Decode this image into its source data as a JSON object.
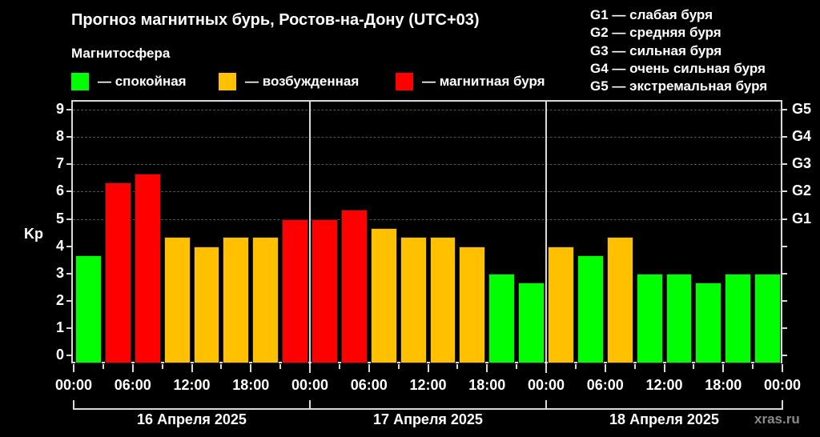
{
  "title": "Прогноз магнитных бурь, Ростов-на-Дону (UTC+03)",
  "legend": {
    "heading": "Магнитосфера",
    "items": [
      {
        "label": "— спокойная",
        "color": "#00ff00",
        "x": 89
      },
      {
        "label": "— возбужденная",
        "color": "#ffc000",
        "x": 273
      },
      {
        "label": "— магнитная буря",
        "color": "#ff0000",
        "x": 494
      }
    ]
  },
  "g_legend": [
    "G1 — слабая буря",
    "G2 — средняя буря",
    "G3 — сильная буря",
    "G4 — очень сильная буря",
    "G5 — экстремальная буря"
  ],
  "watermark": "xras.ru",
  "colors": {
    "quiet": "#00ff00",
    "active": "#ffc000",
    "storm": "#ff0000",
    "background": "#000000",
    "axis": "#d9d9d9",
    "grid": "#555555"
  },
  "chart_data": {
    "type": "bar",
    "title": "Прогноз магнитных бурь, Ростов-на-Дону (UTC+03)",
    "xlabel": "",
    "ylabel": "Kp",
    "ylim": [
      0,
      9
    ],
    "yticks": [
      0,
      1,
      2,
      3,
      4,
      5,
      6,
      7,
      8,
      9
    ],
    "right_axis_labels": [
      {
        "value": 5,
        "label": "G1"
      },
      {
        "value": 6,
        "label": "G2"
      },
      {
        "value": 7,
        "label": "G3"
      },
      {
        "value": 8,
        "label": "G4"
      },
      {
        "value": 9,
        "label": "G5"
      }
    ],
    "grid": "dashed horizontal at 5-9",
    "x_tick_labels": [
      "00:00",
      "06:00",
      "12:00",
      "18:00",
      "00:00",
      "06:00",
      "12:00",
      "18:00",
      "00:00",
      "06:00",
      "12:00",
      "18:00",
      "00:00"
    ],
    "days": [
      "16 Апреля 2025",
      "17 Апреля 2025",
      "18 Апреля 2025"
    ],
    "categories": [
      "16.04 00-03",
      "16.04 03-06",
      "16.04 06-09",
      "16.04 09-12",
      "16.04 12-15",
      "16.04 15-18",
      "16.04 18-21",
      "16.04 21-24",
      "17.04 00-03",
      "17.04 03-06",
      "17.04 06-09",
      "17.04 09-12",
      "17.04 12-15",
      "17.04 15-18",
      "17.04 18-21",
      "17.04 21-24",
      "18.04 00-03",
      "18.04 03-06",
      "18.04 06-09",
      "18.04 09-12",
      "18.04 12-15",
      "18.04 15-18",
      "18.04 18-21",
      "18.04 21-24"
    ],
    "values": [
      3.67,
      6.33,
      6.67,
      4.33,
      4.0,
      4.33,
      4.33,
      5.0,
      5.0,
      5.33,
      4.67,
      4.33,
      4.33,
      4.0,
      3.0,
      2.67,
      4.0,
      3.67,
      4.33,
      3.0,
      3.0,
      2.67,
      3.0,
      3.0
    ],
    "bar_status": [
      "quiet",
      "storm",
      "storm",
      "active",
      "active",
      "active",
      "active",
      "storm",
      "storm",
      "storm",
      "active",
      "active",
      "active",
      "active",
      "quiet",
      "quiet",
      "active",
      "quiet",
      "active",
      "quiet",
      "quiet",
      "quiet",
      "quiet",
      "quiet"
    ],
    "legend": [
      "спокойная",
      "возбужденная",
      "магнитная буря"
    ],
    "legend_position": "top-left"
  }
}
